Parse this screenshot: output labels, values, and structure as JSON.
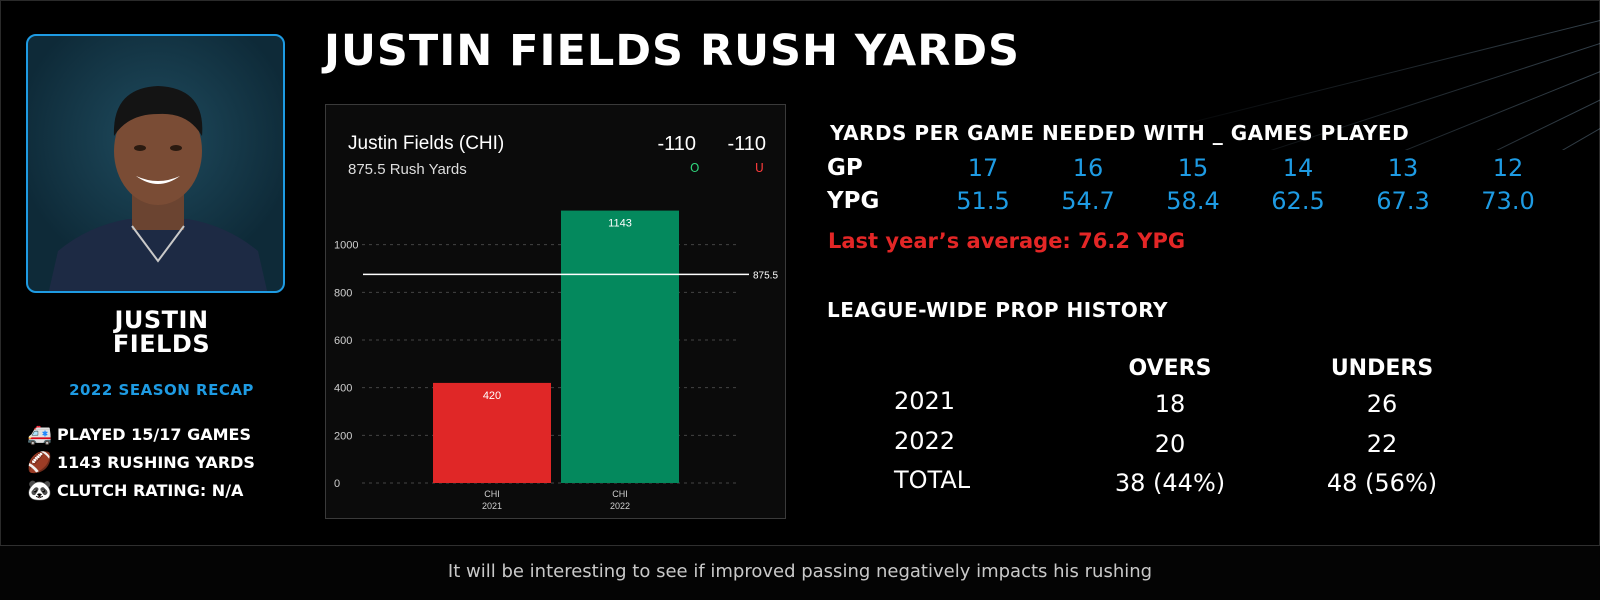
{
  "title": "JUSTIN FIELDS RUSH YARDS",
  "player": {
    "name_line1": "JUSTIN",
    "name_line2": "FIELDS",
    "season": "2022 SEASON RECAP",
    "stats": [
      {
        "icon": "ambulance-icon",
        "glyph": "🚑",
        "text": "PLAYED 15/17 GAMES"
      },
      {
        "icon": "football-icon",
        "glyph": "🏈",
        "text": "1143 RUSHING YARDS"
      },
      {
        "icon": "panda-icon",
        "glyph": "🐼",
        "text": "CLUTCH RATING: N/A"
      }
    ]
  },
  "prop_card": {
    "name": "Justin Fields (CHI)",
    "line_text": "875.5 Rush Yards",
    "over_odds": "-110",
    "under_odds": "-110",
    "over_label": "O",
    "under_label": "U"
  },
  "colors": {
    "accent_blue": "#1e9be3",
    "under_red": "#e02727",
    "over_green": "#04895d",
    "over_label_green": "#2fd27a",
    "under_label_red": "#ff3b3b"
  },
  "chart_data": {
    "type": "bar",
    "categories": [
      [
        "CHI",
        "2021"
      ],
      [
        "CHI",
        "2022"
      ]
    ],
    "values": [
      420,
      1143
    ],
    "bar_colors": [
      "#e02727",
      "#04895d"
    ],
    "ylim": [
      0,
      1200
    ],
    "yticks": [
      0,
      200,
      400,
      600,
      800,
      1000
    ],
    "grid": true,
    "reference_line": {
      "value": 875.5,
      "label": "875.5"
    }
  },
  "ypg_table": {
    "heading": "YARDS PER GAME NEEDED WITH _ GAMES PLAYED",
    "gp_label": "GP",
    "ypg_label": "YPG",
    "gp": [
      "17",
      "16",
      "15",
      "14",
      "13",
      "12"
    ],
    "ypg": [
      "51.5",
      "54.7",
      "58.4",
      "62.5",
      "67.3",
      "73.0"
    ],
    "last_year": "Last year’s average: 76.2 YPG"
  },
  "prop_history": {
    "heading": "LEAGUE-WIDE PROP HISTORY",
    "overs_label": "OVERS",
    "unders_label": "UNDERS",
    "rows": [
      {
        "label": "2021",
        "overs": "18",
        "unders": "26"
      },
      {
        "label": "2022",
        "overs": "20",
        "unders": "22"
      },
      {
        "label": "TOTAL",
        "overs": "38 (44%)",
        "unders": "48 (56%)"
      }
    ]
  },
  "footer": "It will be interesting to see if improved passing negatively impacts his rushing"
}
